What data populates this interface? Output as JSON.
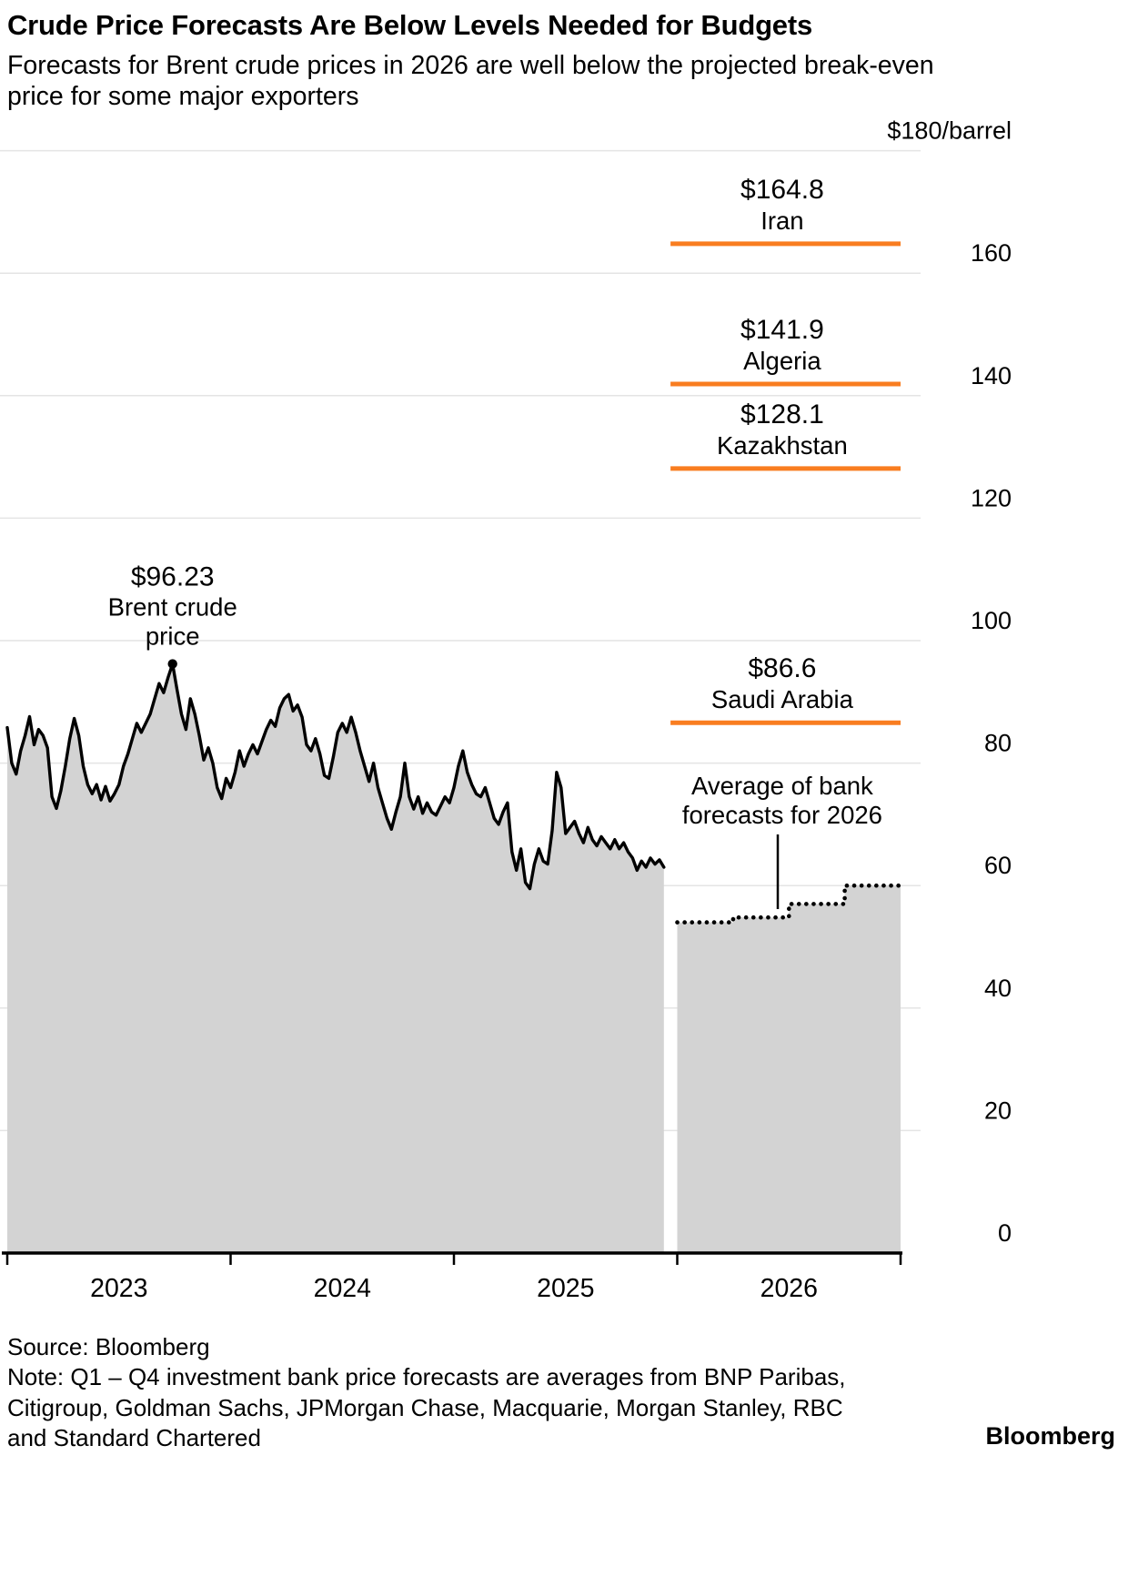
{
  "header": {
    "title": "Crude Price Forecasts Are Below Levels Needed for Budgets",
    "subtitle": "Forecasts for Brent crude prices in 2026 are well below the projected break-even price for some major exporters"
  },
  "footer": {
    "source": "Source: Bloomberg",
    "note": "Note: Q1 – Q4 investment bank price forecasts are averages from BNP Paribas, Citigroup, Goldman Sachs, JPMorgan Chase, Macquarie, Morgan Stanley, RBC and Standard Chartered",
    "logo": "Bloomberg"
  },
  "chart_data": {
    "type": "area",
    "title": "Crude Price Forecasts Are Below Levels Needed for Budgets",
    "subtitle": "Forecasts for Brent crude prices in 2026 are well below the projected break-even price for some major exporters",
    "unit_label": "$180/barrel",
    "ylim": [
      0,
      186
    ],
    "colors": {
      "area_fill": "#d3d3d3",
      "line": "#000000",
      "accent": "#f97d20",
      "gridline": "#e4e4e4"
    },
    "y_axis": {
      "ticks": [
        {
          "value": 180,
          "label": "$180/barrel"
        },
        {
          "value": 160,
          "label": "160"
        },
        {
          "value": 140,
          "label": "140"
        },
        {
          "value": 120,
          "label": "120"
        },
        {
          "value": 100,
          "label": "100"
        },
        {
          "value": 80,
          "label": "80"
        },
        {
          "value": 60,
          "label": "60"
        },
        {
          "value": 40,
          "label": "40"
        },
        {
          "value": 20,
          "label": "20"
        },
        {
          "value": 0,
          "label": "0"
        }
      ]
    },
    "x_axis": {
      "domain": [
        2023.0,
        2027.0
      ],
      "tick_positions": [
        2023,
        2024,
        2025,
        2026,
        2027
      ],
      "labels": [
        {
          "year": "2023",
          "x": 2023.5
        },
        {
          "year": "2024",
          "x": 2024.5
        },
        {
          "year": "2025",
          "x": 2025.5
        },
        {
          "year": "2026",
          "x": 2026.5
        }
      ]
    },
    "series": [
      {
        "name": "Brent crude price",
        "style": "solid-line-with-area",
        "points": [
          [
            2023.0,
            85.8
          ],
          [
            2023.02,
            80.0
          ],
          [
            2023.04,
            78.2
          ],
          [
            2023.06,
            82.0
          ],
          [
            2023.08,
            84.5
          ],
          [
            2023.1,
            87.6
          ],
          [
            2023.12,
            83.0
          ],
          [
            2023.14,
            85.5
          ],
          [
            2023.16,
            84.5
          ],
          [
            2023.18,
            82.5
          ],
          [
            2023.2,
            74.5
          ],
          [
            2023.22,
            72.6
          ],
          [
            2023.24,
            75.5
          ],
          [
            2023.26,
            79.5
          ],
          [
            2023.28,
            84.0
          ],
          [
            2023.3,
            87.3
          ],
          [
            2023.32,
            84.5
          ],
          [
            2023.34,
            79.5
          ],
          [
            2023.36,
            76.5
          ],
          [
            2023.38,
            75.0
          ],
          [
            2023.4,
            76.5
          ],
          [
            2023.42,
            74.0
          ],
          [
            2023.44,
            76.2
          ],
          [
            2023.46,
            73.8
          ],
          [
            2023.48,
            75.0
          ],
          [
            2023.5,
            76.5
          ],
          [
            2023.52,
            79.5
          ],
          [
            2023.54,
            81.5
          ],
          [
            2023.56,
            84.0
          ],
          [
            2023.58,
            86.5
          ],
          [
            2023.6,
            85.0
          ],
          [
            2023.62,
            86.5
          ],
          [
            2023.64,
            88.0
          ],
          [
            2023.66,
            90.5
          ],
          [
            2023.68,
            93.0
          ],
          [
            2023.7,
            91.5
          ],
          [
            2023.72,
            94.0
          ],
          [
            2023.74,
            96.2
          ],
          [
            2023.76,
            92.0
          ],
          [
            2023.78,
            88.0
          ],
          [
            2023.8,
            85.5
          ],
          [
            2023.82,
            90.5
          ],
          [
            2023.84,
            88.0
          ],
          [
            2023.86,
            84.5
          ],
          [
            2023.88,
            80.5
          ],
          [
            2023.9,
            82.5
          ],
          [
            2023.92,
            80.0
          ],
          [
            2023.94,
            76.0
          ],
          [
            2023.96,
            74.2
          ],
          [
            2023.98,
            77.5
          ],
          [
            2024.0,
            76.0
          ],
          [
            2024.02,
            78.5
          ],
          [
            2024.04,
            82.0
          ],
          [
            2024.06,
            79.5
          ],
          [
            2024.08,
            81.5
          ],
          [
            2024.1,
            83.0
          ],
          [
            2024.12,
            81.5
          ],
          [
            2024.14,
            83.5
          ],
          [
            2024.16,
            85.5
          ],
          [
            2024.18,
            87.0
          ],
          [
            2024.2,
            86.0
          ],
          [
            2024.22,
            89.0
          ],
          [
            2024.24,
            90.5
          ],
          [
            2024.26,
            91.2
          ],
          [
            2024.28,
            88.5
          ],
          [
            2024.3,
            89.5
          ],
          [
            2024.32,
            87.5
          ],
          [
            2024.34,
            83.0
          ],
          [
            2024.36,
            82.0
          ],
          [
            2024.38,
            84.0
          ],
          [
            2024.4,
            81.5
          ],
          [
            2024.42,
            78.0
          ],
          [
            2024.44,
            77.5
          ],
          [
            2024.46,
            81.0
          ],
          [
            2024.48,
            85.0
          ],
          [
            2024.5,
            86.5
          ],
          [
            2024.52,
            85.0
          ],
          [
            2024.54,
            87.5
          ],
          [
            2024.56,
            85.0
          ],
          [
            2024.58,
            82.0
          ],
          [
            2024.6,
            79.5
          ],
          [
            2024.62,
            77.0
          ],
          [
            2024.64,
            80.0
          ],
          [
            2024.66,
            76.0
          ],
          [
            2024.68,
            73.5
          ],
          [
            2024.7,
            71.0
          ],
          [
            2024.72,
            69.2
          ],
          [
            2024.74,
            72.0
          ],
          [
            2024.76,
            74.5
          ],
          [
            2024.78,
            80.0
          ],
          [
            2024.8,
            74.5
          ],
          [
            2024.82,
            72.5
          ],
          [
            2024.84,
            74.5
          ],
          [
            2024.86,
            71.8
          ],
          [
            2024.88,
            73.5
          ],
          [
            2024.9,
            72.0
          ],
          [
            2024.92,
            71.5
          ],
          [
            2024.94,
            73.0
          ],
          [
            2024.96,
            74.5
          ],
          [
            2024.98,
            73.5
          ],
          [
            2025.0,
            76.0
          ],
          [
            2025.02,
            79.5
          ],
          [
            2025.04,
            82.0
          ],
          [
            2025.06,
            78.5
          ],
          [
            2025.08,
            76.5
          ],
          [
            2025.1,
            75.0
          ],
          [
            2025.12,
            74.5
          ],
          [
            2025.14,
            76.0
          ],
          [
            2025.16,
            73.5
          ],
          [
            2025.18,
            71.0
          ],
          [
            2025.2,
            70.0
          ],
          [
            2025.22,
            72.0
          ],
          [
            2025.24,
            73.5
          ],
          [
            2025.26,
            65.5
          ],
          [
            2025.28,
            62.5
          ],
          [
            2025.3,
            66.0
          ],
          [
            2025.32,
            60.5
          ],
          [
            2025.34,
            59.5
          ],
          [
            2025.36,
            63.5
          ],
          [
            2025.38,
            66.0
          ],
          [
            2025.4,
            64.0
          ],
          [
            2025.42,
            63.5
          ],
          [
            2025.44,
            69.0
          ],
          [
            2025.46,
            78.5
          ],
          [
            2025.48,
            76.0
          ],
          [
            2025.5,
            68.5
          ],
          [
            2025.52,
            69.5
          ],
          [
            2025.54,
            70.5
          ],
          [
            2025.56,
            68.5
          ],
          [
            2025.58,
            67.0
          ],
          [
            2025.6,
            69.5
          ],
          [
            2025.62,
            67.5
          ],
          [
            2025.64,
            66.5
          ],
          [
            2025.66,
            68.0
          ],
          [
            2025.68,
            67.0
          ],
          [
            2025.7,
            66.0
          ],
          [
            2025.72,
            67.5
          ],
          [
            2025.74,
            66.0
          ],
          [
            2025.76,
            67.0
          ],
          [
            2025.78,
            65.5
          ],
          [
            2025.8,
            64.5
          ],
          [
            2025.82,
            62.5
          ],
          [
            2025.84,
            64.0
          ],
          [
            2025.86,
            63.0
          ],
          [
            2025.88,
            64.5
          ],
          [
            2025.9,
            63.5
          ],
          [
            2025.92,
            64.2
          ],
          [
            2025.94,
            63.0
          ]
        ]
      },
      {
        "name": "Average of bank forecasts for 2026",
        "style": "dotted-step-with-area",
        "steps": [
          {
            "quarter": "Q1 2026",
            "x0": 2026.0,
            "x1": 2026.25,
            "value": 54.0
          },
          {
            "quarter": "Q2 2026",
            "x0": 2026.25,
            "x1": 2026.5,
            "value": 54.8
          },
          {
            "quarter": "Q3 2026",
            "x0": 2026.5,
            "x1": 2026.75,
            "value": 57.0
          },
          {
            "quarter": "Q4 2026",
            "x0": 2026.75,
            "x1": 2027.0,
            "value": 60.0
          }
        ]
      }
    ],
    "breakeven_lines": [
      {
        "country": "Iran",
        "value": 164.8,
        "label": "$164.8"
      },
      {
        "country": "Algeria",
        "value": 141.9,
        "label": "$141.9"
      },
      {
        "country": "Kazakhstan",
        "value": 128.1,
        "label": "$128.1"
      },
      {
        "country": "Saudi Arabia",
        "value": 86.6,
        "label": "$86.6"
      }
    ],
    "breakeven_x_range": [
      2025.97,
      2027.0
    ],
    "breakeven_label_x": 2026.47,
    "peak_annotation": {
      "value_label": "$96.23",
      "name_lines": [
        "Brent crude",
        "price"
      ],
      "x": 2023.74,
      "value": 96.2
    },
    "forecast_annotation": {
      "lines": [
        "Average of bank",
        "forecasts for 2026"
      ],
      "x": 2026.47,
      "pointer_x": 2026.45
    }
  }
}
